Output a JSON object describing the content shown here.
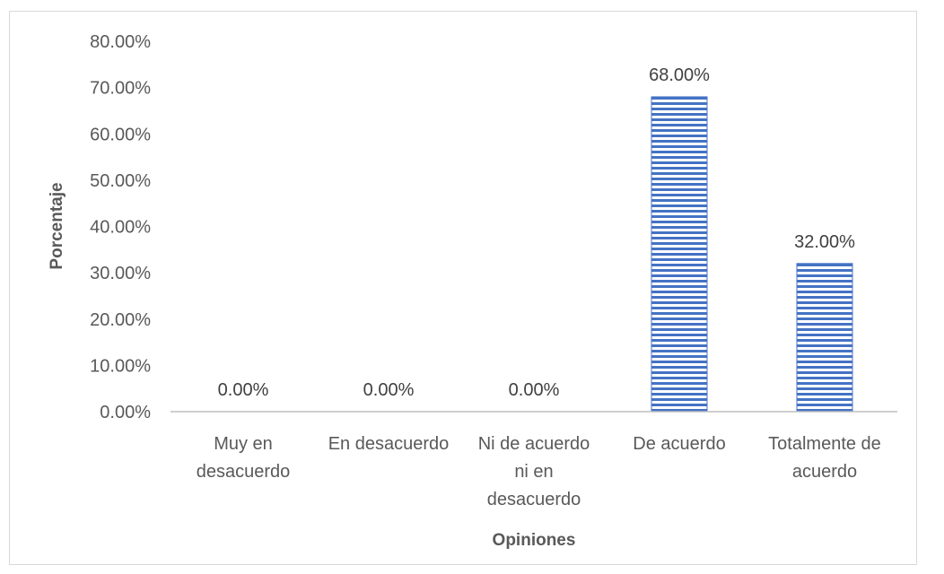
{
  "chart_data": {
    "type": "bar",
    "title": "",
    "xlabel": "Opiniones",
    "ylabel": "Porcentaje",
    "categories": [
      "Muy en desacuerdo",
      "En desacuerdo",
      "Ni de acuerdo ni en desacuerdo",
      "De acuerdo",
      "Totalmente de acuerdo"
    ],
    "category_label_lines": [
      [
        "Muy en",
        "desacuerdo"
      ],
      [
        "En desacuerdo"
      ],
      [
        "Ni de acuerdo",
        "ni en",
        "desacuerdo"
      ],
      [
        "De acuerdo"
      ],
      [
        "Totalmente de",
        "acuerdo"
      ]
    ],
    "values": [
      0,
      0,
      0,
      68,
      32
    ],
    "data_labels": [
      "0.00%",
      "0.00%",
      "0.00%",
      "68.00%",
      "32.00%"
    ],
    "ylim": [
      0,
      80
    ],
    "yticks": [
      0,
      10,
      20,
      30,
      40,
      50,
      60,
      70,
      80
    ],
    "ytick_labels": [
      "0.00%",
      "10.00%",
      "20.00%",
      "30.00%",
      "40.00%",
      "50.00%",
      "60.00%",
      "70.00%",
      "80.00%"
    ],
    "grid": false,
    "legend": "none",
    "bar_color": "#4472c4",
    "bar_pattern": "horizontal-stripes"
  }
}
